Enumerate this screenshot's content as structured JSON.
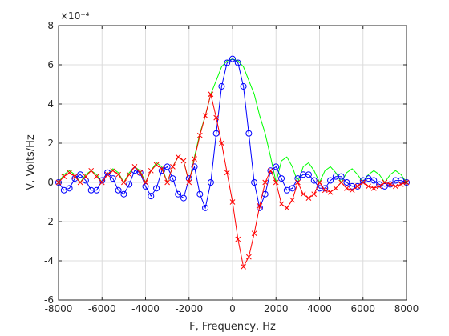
{
  "chart_data": {
    "type": "line",
    "xlabel": "F, Frequency, Hz",
    "ylabel": "V, Volts/Hz",
    "y_exponent_label": "×10⁻⁴",
    "xlim": [
      -8000,
      8000
    ],
    "ylim": [
      -6,
      8
    ],
    "y_scale_factor": 0.0001,
    "x_ticks": [
      -8000,
      -6000,
      -4000,
      -2000,
      0,
      2000,
      4000,
      6000,
      8000
    ],
    "x_tick_labels": [
      "-8000",
      "-6000",
      "-4000",
      "-2000",
      "0",
      "2000",
      "4000",
      "6000",
      "8000"
    ],
    "y_ticks": [
      -6,
      -4,
      -2,
      0,
      2,
      4,
      6,
      8
    ],
    "y_tick_labels": [
      "-6",
      "-4",
      "-2",
      "0",
      "2",
      "4",
      "6",
      "8"
    ],
    "grid": true,
    "series": [
      {
        "style": "line",
        "color": "#00ff00",
        "x": [
          -8000,
          -7750,
          -7500,
          -7250,
          -7000,
          -6750,
          -6500,
          -6250,
          -6000,
          -5750,
          -5500,
          -5250,
          -5000,
          -4750,
          -4500,
          -4250,
          -4000,
          -3750,
          -3500,
          -3250,
          -3000,
          -2750,
          -2500,
          -2250,
          -2000,
          -1750,
          -1500,
          -1250,
          -1000,
          -750,
          -500,
          -250,
          0,
          250,
          500,
          750,
          1000,
          1250,
          1500,
          1750,
          2000,
          2250,
          2500,
          2750,
          3000,
          3250,
          3500,
          3750,
          4000,
          4250,
          4500,
          4750,
          5000,
          5250,
          5500,
          5750,
          6000,
          6250,
          6500,
          6750,
          7000,
          7250,
          7500,
          7750,
          8000
        ],
        "y": [
          0.0,
          0.4,
          0.6,
          0.4,
          0.0,
          0.4,
          0.6,
          0.4,
          0.0,
          0.4,
          0.7,
          0.5,
          0.0,
          0.5,
          0.8,
          0.6,
          0.0,
          0.6,
          1.0,
          0.8,
          0.0,
          0.8,
          1.3,
          1.1,
          0.0,
          1.3,
          2.5,
          3.4,
          4.5,
          5.2,
          5.9,
          6.2,
          6.3,
          6.2,
          5.9,
          5.2,
          4.5,
          3.4,
          2.5,
          1.3,
          0.0,
          1.1,
          1.3,
          0.8,
          0.0,
          0.8,
          1.0,
          0.6,
          0.0,
          0.6,
          0.8,
          0.5,
          0.0,
          0.5,
          0.7,
          0.4,
          0.0,
          0.4,
          0.6,
          0.4,
          0.0,
          0.4,
          0.6,
          0.4,
          0.0
        ]
      },
      {
        "style": "line+circle",
        "color": "#0000ff",
        "x": [
          -8000,
          -7750,
          -7500,
          -7250,
          -7000,
          -6750,
          -6500,
          -6250,
          -6000,
          -5750,
          -5500,
          -5250,
          -5000,
          -4750,
          -4500,
          -4250,
          -4000,
          -3750,
          -3500,
          -3250,
          -3000,
          -2750,
          -2500,
          -2250,
          -2000,
          -1750,
          -1500,
          -1250,
          -1000,
          -750,
          -500,
          -250,
          0,
          250,
          500,
          750,
          1000,
          1250,
          1500,
          1750,
          2000,
          2250,
          2500,
          2750,
          3000,
          3250,
          3500,
          3750,
          4000,
          4250,
          4500,
          4750,
          5000,
          5250,
          5500,
          5750,
          6000,
          6250,
          6500,
          6750,
          7000,
          7250,
          7500,
          7750,
          8000
        ],
        "y": [
          0.0,
          -0.4,
          -0.3,
          0.2,
          0.4,
          0.1,
          -0.4,
          -0.4,
          0.1,
          0.5,
          0.2,
          -0.4,
          -0.6,
          -0.1,
          0.6,
          0.5,
          -0.2,
          -0.7,
          -0.3,
          0.6,
          0.8,
          0.2,
          -0.6,
          -0.8,
          0.2,
          0.8,
          -0.6,
          -1.3,
          0.0,
          2.5,
          4.9,
          6.1,
          6.3,
          6.1,
          4.9,
          2.5,
          0.0,
          -1.3,
          -0.6,
          0.6,
          0.8,
          0.2,
          -0.4,
          -0.3,
          0.2,
          0.4,
          0.4,
          0.1,
          -0.3,
          -0.3,
          0.1,
          0.3,
          0.3,
          0.0,
          -0.2,
          -0.2,
          0.1,
          0.2,
          0.1,
          -0.1,
          -0.2,
          -0.1,
          0.1,
          0.1,
          0.0
        ]
      },
      {
        "style": "line+cross",
        "color": "#ff0000",
        "x": [
          -8000,
          -7750,
          -7500,
          -7250,
          -7000,
          -6750,
          -6500,
          -6250,
          -6000,
          -5750,
          -5500,
          -5250,
          -5000,
          -4750,
          -4500,
          -4250,
          -4000,
          -3750,
          -3500,
          -3250,
          -3000,
          -2750,
          -2500,
          -2250,
          -2000,
          -1750,
          -1500,
          -1250,
          -1000,
          -750,
          -500,
          -250,
          0,
          250,
          500,
          750,
          1000,
          1250,
          1500,
          1750,
          2000,
          2250,
          2500,
          2750,
          3000,
          3250,
          3500,
          3750,
          4000,
          4250,
          4500,
          4750,
          5000,
          5250,
          5500,
          5750,
          6000,
          6250,
          6500,
          6750,
          7000,
          7250,
          7500,
          7750,
          8000
        ],
        "y": [
          0.0,
          0.3,
          0.5,
          0.3,
          0.0,
          0.3,
          0.6,
          0.3,
          0.0,
          0.4,
          0.6,
          0.4,
          0.0,
          0.4,
          0.8,
          0.5,
          0.0,
          0.6,
          0.9,
          0.7,
          0.0,
          0.8,
          1.3,
          1.1,
          0.0,
          1.2,
          2.4,
          3.4,
          4.5,
          3.3,
          2.0,
          0.5,
          -1.0,
          -2.9,
          -4.3,
          -3.8,
          -2.6,
          -1.2,
          0.0,
          0.6,
          0.0,
          -1.1,
          -1.3,
          -0.9,
          0.0,
          -0.6,
          -0.8,
          -0.6,
          0.0,
          -0.4,
          -0.5,
          -0.3,
          0.0,
          -0.3,
          -0.4,
          -0.2,
          0.0,
          -0.2,
          -0.3,
          -0.2,
          0.0,
          -0.1,
          -0.2,
          -0.1,
          0.0
        ]
      }
    ]
  }
}
